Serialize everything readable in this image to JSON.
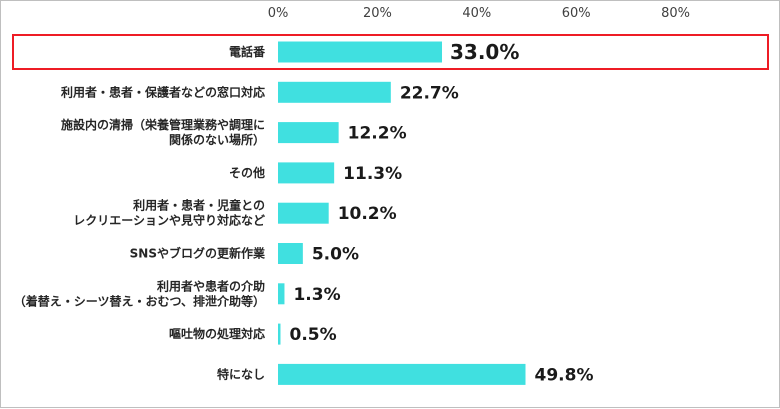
{
  "chart_data": {
    "type": "bar",
    "orientation": "horizontal",
    "categories": [
      [
        "電話番"
      ],
      [
        "利用者・患者・保護者などの窓口対応"
      ],
      [
        "施設内の清掃（栄養管理業務や調理に",
        "関係のない場所）"
      ],
      [
        "その他"
      ],
      [
        "利用者・患者・児童との",
        "レクリエーションや見守り対応など"
      ],
      [
        "SNSやブログの更新作業"
      ],
      [
        "利用者や患者の介助",
        "（着替え・シーツ替え・おむつ、排泄介助等）"
      ],
      [
        "嘔吐物の処理対応"
      ],
      [
        "特になし"
      ]
    ],
    "values": [
      33.0,
      22.7,
      12.2,
      11.3,
      10.2,
      5.0,
      1.3,
      0.5,
      49.8
    ],
    "value_labels": [
      "33.0%",
      "22.7%",
      "12.2%",
      "11.3%",
      "10.2%",
      "5.0%",
      "1.3%",
      "0.5%",
      "49.8%"
    ],
    "xlim": [
      0,
      100
    ],
    "xticks": [
      0,
      20,
      40,
      60,
      80
    ],
    "xtick_labels": [
      "0%",
      "20%",
      "40%",
      "60%",
      "80%"
    ],
    "highlight_index": 0,
    "grid": false,
    "legend": "none",
    "colors": {
      "bar": "#40e0e0",
      "highlight_border": "#ee1c25",
      "text": "#262626"
    }
  }
}
